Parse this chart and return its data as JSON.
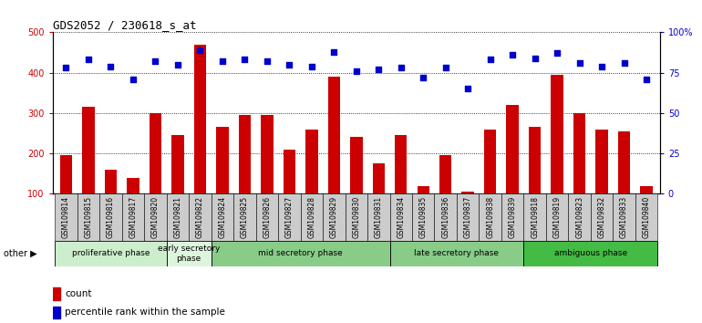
{
  "title": "GDS2052 / 230618_s_at",
  "samples": [
    "GSM109814",
    "GSM109815",
    "GSM109816",
    "GSM109817",
    "GSM109820",
    "GSM109821",
    "GSM109822",
    "GSM109824",
    "GSM109825",
    "GSM109826",
    "GSM109827",
    "GSM109828",
    "GSM109829",
    "GSM109830",
    "GSM109831",
    "GSM109834",
    "GSM109835",
    "GSM109836",
    "GSM109837",
    "GSM109838",
    "GSM109839",
    "GSM109818",
    "GSM109819",
    "GSM109823",
    "GSM109832",
    "GSM109833",
    "GSM109840"
  ],
  "counts": [
    195,
    315,
    160,
    140,
    300,
    245,
    470,
    265,
    295,
    295,
    210,
    260,
    390,
    240,
    175,
    245,
    120,
    195,
    105,
    260,
    320,
    265,
    395,
    300,
    260,
    255,
    120
  ],
  "percentiles": [
    78,
    83,
    79,
    71,
    82,
    80,
    89,
    82,
    83,
    82,
    80,
    79,
    88,
    76,
    77,
    78,
    72,
    78,
    65,
    83,
    86,
    84,
    87,
    81,
    79,
    81,
    71
  ],
  "bar_color": "#cc0000",
  "dot_color": "#0000cc",
  "ylim_left": [
    100,
    500
  ],
  "ylim_right": [
    0,
    100
  ],
  "yticks_left": [
    100,
    200,
    300,
    400,
    500
  ],
  "yticks_right": [
    0,
    25,
    50,
    75,
    100
  ],
  "yticklabels_right": [
    "0",
    "25",
    "50",
    "75",
    "100%"
  ],
  "phases": [
    {
      "label": "proliferative phase",
      "start": 0,
      "end": 5,
      "color": "#cceecc"
    },
    {
      "label": "early secretory\nphase",
      "start": 5,
      "end": 7,
      "color": "#ddf5dd"
    },
    {
      "label": "mid secretory phase",
      "start": 7,
      "end": 15,
      "color": "#88cc88"
    },
    {
      "label": "late secretory phase",
      "start": 15,
      "end": 21,
      "color": "#88cc88"
    },
    {
      "label": "ambiguous phase",
      "start": 21,
      "end": 27,
      "color": "#44bb44"
    }
  ],
  "legend_count_label": "count",
  "legend_pct_label": "percentile rank within the sample",
  "plot_bg_color": "#ffffff",
  "tick_bg_color": "#cccccc"
}
